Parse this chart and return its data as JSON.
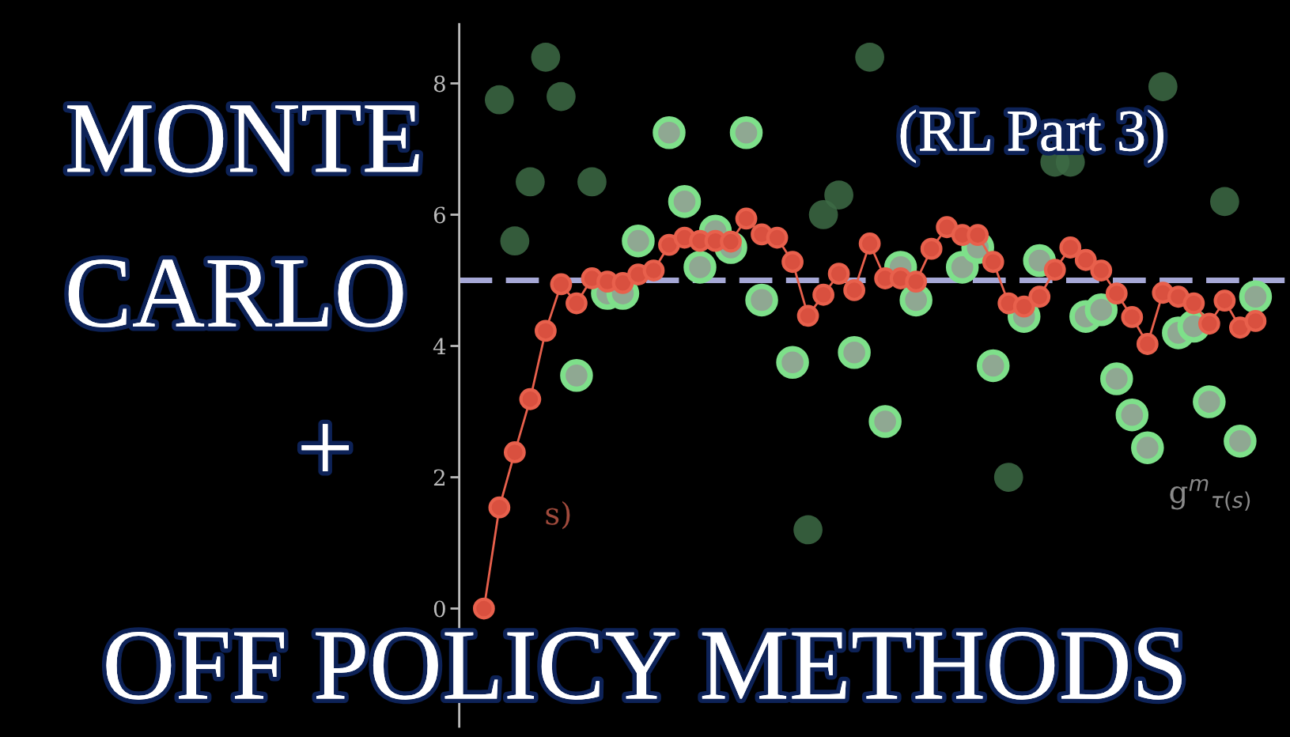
{
  "chart_data": {
    "type": "line",
    "title": "MONTE\nCARLO\n+\nOFF POLICY METHODS",
    "subtitle": "(RL Part 3)",
    "categories": [
      null,
      null,
      null,
      null,
      null,
      null,
      null,
      null,
      null,
      null,
      null,
      null,
      null,
      null,
      null,
      null,
      null,
      null,
      null,
      null,
      null,
      null,
      null,
      null,
      null,
      null,
      null,
      null,
      null,
      null,
      null,
      null,
      null,
      null,
      null,
      null,
      null,
      null,
      null,
      null,
      null,
      null,
      null,
      null,
      null,
      null,
      null,
      null,
      null,
      null,
      null
    ],
    "series": [
      {
        "type": "scatter",
        "color": "#3d6b45",
        "values": [
          null,
          7.75,
          5.6,
          6.5,
          8.4,
          7.8,
          null,
          6.5,
          null,
          null,
          null,
          null,
          null,
          null,
          null,
          null,
          null,
          null,
          null,
          null,
          null,
          1.2,
          6.0,
          6.3,
          null,
          8.4,
          null,
          null,
          null,
          null,
          null,
          null,
          null,
          null,
          2.0,
          null,
          null,
          6.8,
          6.8,
          null,
          null,
          null,
          null,
          null,
          7.95,
          null,
          null,
          null,
          6.2,
          null,
          null
        ]
      },
      {
        "type": "scatter",
        "color": "#7ee08a",
        "values": [
          null,
          null,
          null,
          null,
          null,
          null,
          3.55,
          null,
          4.8,
          4.8,
          5.6,
          null,
          7.25,
          6.2,
          5.2,
          5.75,
          5.5,
          7.25,
          4.7,
          null,
          3.75,
          null,
          null,
          null,
          3.9,
          null,
          2.85,
          5.2,
          4.7,
          null,
          null,
          5.2,
          5.5,
          3.7,
          null,
          4.45,
          5.3,
          null,
          null,
          4.45,
          4.55,
          3.5,
          2.95,
          2.45,
          null,
          4.2,
          4.3,
          3.15,
          null,
          2.55,
          4.75
        ]
      },
      {
        "color": "#e8604c",
        "values": [
          0,
          1.54,
          2.38,
          3.19,
          4.23,
          4.94,
          4.65,
          5.03,
          4.98,
          4.96,
          5.09,
          5.15,
          5.54,
          5.65,
          5.6,
          5.6,
          5.59,
          5.94,
          5.7,
          5.65,
          5.28,
          4.46,
          4.78,
          5.1,
          4.85,
          5.56,
          5.03,
          5.03,
          4.98,
          5.48,
          5.81,
          5.69,
          5.69,
          5.28,
          4.65,
          4.6,
          4.75,
          5.16,
          5.5,
          5.31,
          5.15,
          4.8,
          4.44,
          4.03,
          4.81,
          4.75,
          4.65,
          4.34,
          4.69,
          4.28,
          4.38
        ]
      }
    ],
    "marker": "circle",
    "ylim": [
      -1.8,
      8.9
    ],
    "yticks": [
      0,
      2,
      4,
      6,
      8
    ],
    "tick_labels": "y",
    "ref_lines": [
      {
        "axis": "y",
        "value": 5,
        "color": "#a6a8d6",
        "line_style": "dashed"
      }
    ],
    "annotations": [
      "g$^{m}$$_{τ(s)}$",
      "s)"
    ]
  }
}
